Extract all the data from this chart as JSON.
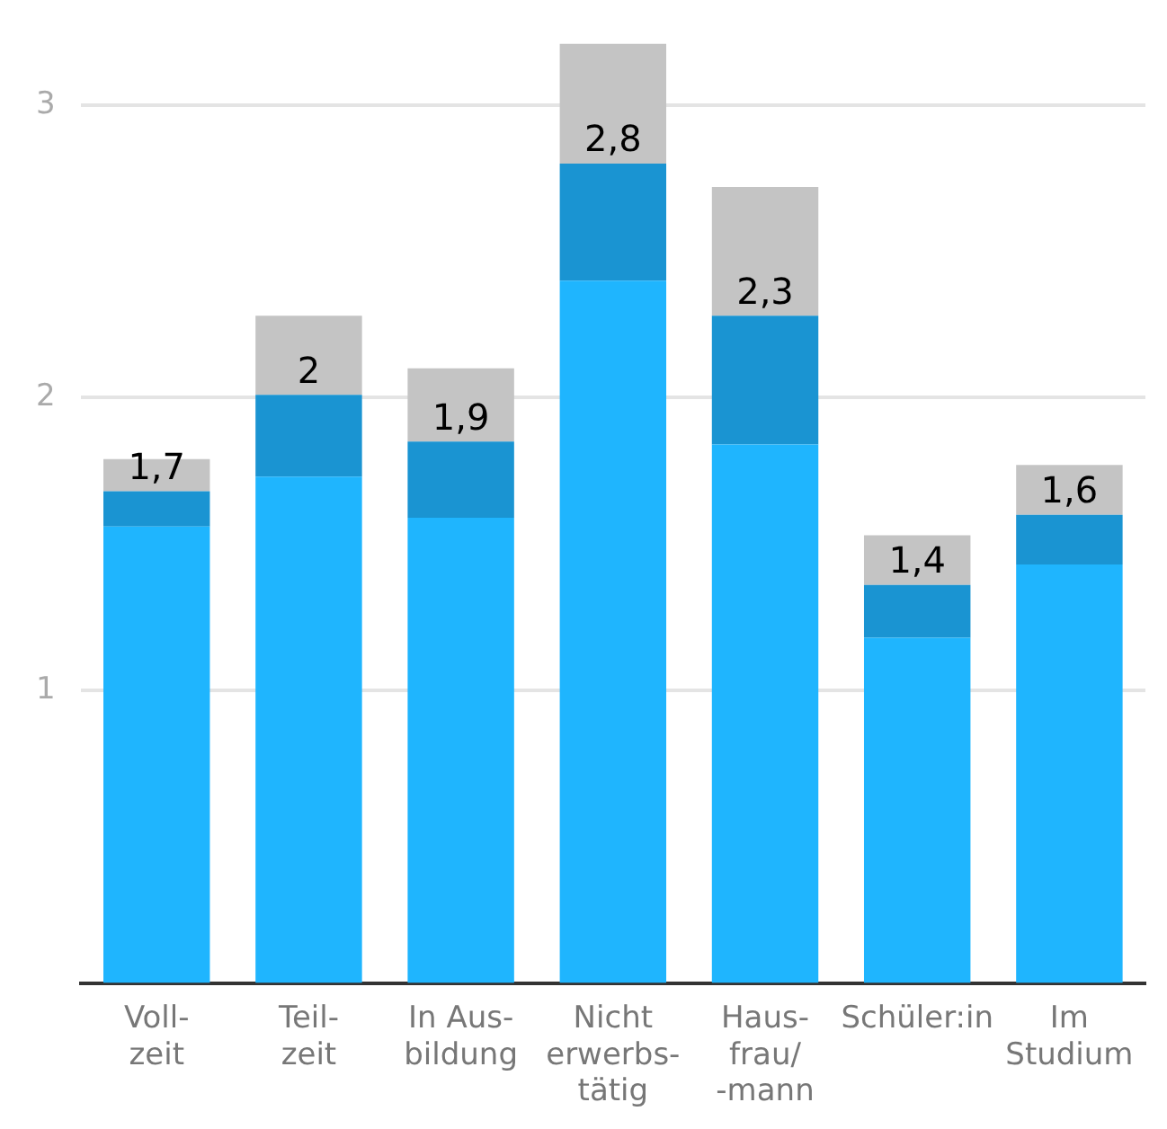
{
  "chart_data": {
    "type": "bar",
    "stacked": true,
    "categories": [
      "Voll-\nzeit",
      "Teil-\nzeit",
      "In Aus-\nbildung",
      "Nicht\nerwerbs-\ntätig",
      "Haus-\nfrau/\n-mann",
      "Schüler:in",
      "Im\nStudium"
    ],
    "series": [
      {
        "color": "#1fb5fe",
        "values": [
          1.56,
          1.73,
          1.59,
          2.4,
          1.84,
          1.18,
          1.43
        ]
      },
      {
        "color": "#1a94d2",
        "values": [
          0.12,
          0.28,
          0.26,
          0.4,
          0.44,
          0.18,
          0.17
        ]
      },
      {
        "color": "#c4c4c4",
        "values": [
          0.11,
          0.27,
          0.25,
          0.41,
          0.44,
          0.17,
          0.17
        ]
      }
    ],
    "annotations": [
      {
        "text": "1,7",
        "x": "Voll-\nzeit",
        "y": 1.68
      },
      {
        "text": "2",
        "x": "Teil-\nzeit",
        "y": 2.01
      },
      {
        "text": "1,9",
        "x": "In Aus-\nbildung",
        "y": 1.85
      },
      {
        "text": "2,8",
        "x": "Nicht\nerwerbs-\ntätig",
        "y": 2.8
      },
      {
        "text": "2,3",
        "x": "Haus-\nfrau/\n-mann",
        "y": 2.28
      },
      {
        "text": "1,4",
        "x": "Schüler:in",
        "y": 1.36
      },
      {
        "text": "1,6",
        "x": "Im\nStudium",
        "y": 1.6
      }
    ],
    "ylim": [
      0,
      3.21
    ],
    "yticks": [
      1,
      2,
      3
    ],
    "grid": "y",
    "legend": false
  }
}
